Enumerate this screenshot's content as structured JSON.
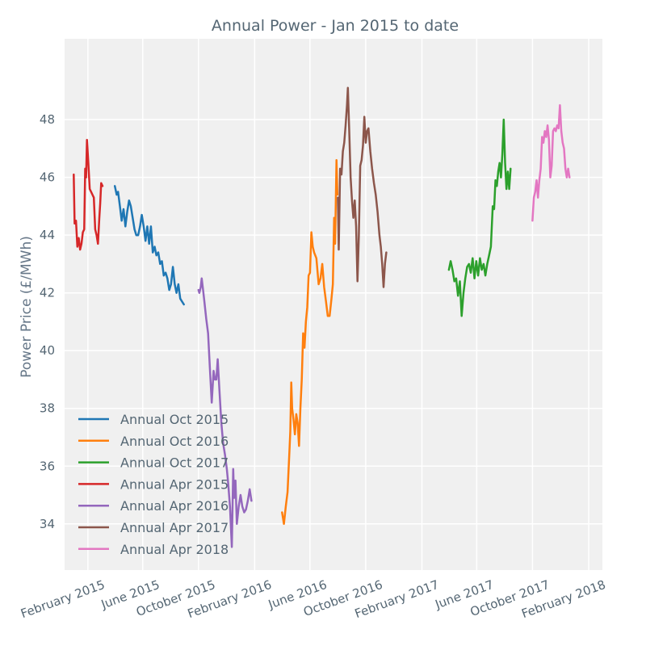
{
  "chart_data": {
    "type": "line",
    "title": "Annual Power - Jan 2015 to date",
    "xlabel": "",
    "ylabel": "Power Price (£/MWh)",
    "ylim": [
      32.4,
      50.8
    ],
    "xlim": [
      "2014-12-12",
      "2018-03-03"
    ],
    "y_ticks": [
      34,
      36,
      38,
      40,
      42,
      44,
      46,
      48
    ],
    "x_ticks": [
      {
        "date": "2015-02-01",
        "label": "February 2015"
      },
      {
        "date": "2015-06-01",
        "label": "June 2015"
      },
      {
        "date": "2015-10-01",
        "label": "October 2015"
      },
      {
        "date": "2016-02-01",
        "label": "February 2016"
      },
      {
        "date": "2016-06-01",
        "label": "June 2016"
      },
      {
        "date": "2016-10-01",
        "label": "October 2016"
      },
      {
        "date": "2017-02-01",
        "label": "February 2017"
      },
      {
        "date": "2017-06-01",
        "label": "June 2017"
      },
      {
        "date": "2017-10-01",
        "label": "October 2017"
      },
      {
        "date": "2018-02-01",
        "label": "February 2018"
      }
    ],
    "grid": true,
    "legend_position": "bottom-left",
    "series": [
      {
        "name": "Annual Oct 2015",
        "color": "#1f77b4",
        "points": [
          [
            "2015-04-01",
            45.7
          ],
          [
            "2015-04-05",
            45.4
          ],
          [
            "2015-04-08",
            45.5
          ],
          [
            "2015-04-12",
            45.0
          ],
          [
            "2015-04-16",
            44.5
          ],
          [
            "2015-04-20",
            44.9
          ],
          [
            "2015-04-24",
            44.3
          ],
          [
            "2015-04-28",
            44.8
          ],
          [
            "2015-05-02",
            45.2
          ],
          [
            "2015-05-06",
            45.0
          ],
          [
            "2015-05-10",
            44.6
          ],
          [
            "2015-05-14",
            44.2
          ],
          [
            "2015-05-18",
            44.0
          ],
          [
            "2015-05-22",
            44.0
          ],
          [
            "2015-05-26",
            44.3
          ],
          [
            "2015-05-30",
            44.7
          ],
          [
            "2015-06-03",
            44.3
          ],
          [
            "2015-06-07",
            43.8
          ],
          [
            "2015-06-11",
            44.3
          ],
          [
            "2015-06-15",
            43.7
          ],
          [
            "2015-06-19",
            44.3
          ],
          [
            "2015-06-23",
            43.4
          ],
          [
            "2015-06-27",
            43.6
          ],
          [
            "2015-07-01",
            43.3
          ],
          [
            "2015-07-05",
            43.4
          ],
          [
            "2015-07-09",
            43.0
          ],
          [
            "2015-07-13",
            43.1
          ],
          [
            "2015-07-17",
            42.6
          ],
          [
            "2015-07-21",
            42.7
          ],
          [
            "2015-07-25",
            42.5
          ],
          [
            "2015-07-29",
            42.1
          ],
          [
            "2015-08-02",
            42.3
          ],
          [
            "2015-08-06",
            42.9
          ],
          [
            "2015-08-10",
            42.3
          ],
          [
            "2015-08-14",
            42.0
          ],
          [
            "2015-08-18",
            42.3
          ],
          [
            "2015-08-22",
            41.8
          ],
          [
            "2015-08-26",
            41.7
          ],
          [
            "2015-08-30",
            41.6
          ]
        ]
      },
      {
        "name": "Annual Oct 2016",
        "color": "#ff7f0e",
        "points": [
          [
            "2016-04-01",
            34.4
          ],
          [
            "2016-04-05",
            34.0
          ],
          [
            "2016-04-09",
            34.6
          ],
          [
            "2016-04-13",
            35.1
          ],
          [
            "2016-04-17",
            36.5
          ],
          [
            "2016-04-19",
            37.2
          ],
          [
            "2016-04-21",
            38.9
          ],
          [
            "2016-04-23",
            38.0
          ],
          [
            "2016-04-26",
            37.6
          ],
          [
            "2016-04-29",
            37.1
          ],
          [
            "2016-05-02",
            37.8
          ],
          [
            "2016-05-05",
            37.5
          ],
          [
            "2016-05-08",
            36.7
          ],
          [
            "2016-05-11",
            38.0
          ],
          [
            "2016-05-14",
            39.0
          ],
          [
            "2016-05-17",
            40.6
          ],
          [
            "2016-05-20",
            40.1
          ],
          [
            "2016-05-23",
            41.0
          ],
          [
            "2016-05-26",
            41.5
          ],
          [
            "2016-05-29",
            42.6
          ],
          [
            "2016-06-01",
            42.7
          ],
          [
            "2016-06-04",
            44.1
          ],
          [
            "2016-06-07",
            43.6
          ],
          [
            "2016-06-10",
            43.4
          ],
          [
            "2016-06-15",
            43.2
          ],
          [
            "2016-06-20",
            42.3
          ],
          [
            "2016-06-24",
            42.5
          ],
          [
            "2016-06-28",
            43.0
          ],
          [
            "2016-07-02",
            42.2
          ],
          [
            "2016-07-06",
            41.7
          ],
          [
            "2016-07-10",
            41.2
          ],
          [
            "2016-07-14",
            41.2
          ],
          [
            "2016-07-18",
            41.8
          ],
          [
            "2016-07-21",
            42.3
          ],
          [
            "2016-07-24",
            44.6
          ],
          [
            "2016-07-26",
            43.7
          ],
          [
            "2016-07-29",
            46.6
          ],
          [
            "2016-07-31",
            45.4
          ]
        ]
      },
      {
        "name": "Annual Oct 2017",
        "color": "#2ca02c",
        "points": [
          [
            "2017-04-01",
            42.8
          ],
          [
            "2017-04-05",
            43.1
          ],
          [
            "2017-04-09",
            42.8
          ],
          [
            "2017-04-13",
            42.4
          ],
          [
            "2017-04-17",
            42.5
          ],
          [
            "2017-04-21",
            41.9
          ],
          [
            "2017-04-25",
            42.4
          ],
          [
            "2017-04-29",
            41.2
          ],
          [
            "2017-05-03",
            42.0
          ],
          [
            "2017-05-07",
            42.5
          ],
          [
            "2017-05-11",
            42.9
          ],
          [
            "2017-05-15",
            43.0
          ],
          [
            "2017-05-19",
            42.7
          ],
          [
            "2017-05-23",
            43.2
          ],
          [
            "2017-05-27",
            42.5
          ],
          [
            "2017-05-31",
            43.1
          ],
          [
            "2017-06-04",
            42.6
          ],
          [
            "2017-06-08",
            43.2
          ],
          [
            "2017-06-12",
            42.8
          ],
          [
            "2017-06-16",
            43.0
          ],
          [
            "2017-06-20",
            42.6
          ],
          [
            "2017-06-24",
            43.0
          ],
          [
            "2017-06-28",
            43.3
          ],
          [
            "2017-07-02",
            43.6
          ],
          [
            "2017-07-06",
            45.0
          ],
          [
            "2017-07-09",
            44.9
          ],
          [
            "2017-07-12",
            45.9
          ],
          [
            "2017-07-15",
            45.7
          ],
          [
            "2017-07-18",
            46.2
          ],
          [
            "2017-07-21",
            46.5
          ],
          [
            "2017-07-24",
            46.0
          ],
          [
            "2017-07-27",
            46.8
          ],
          [
            "2017-07-30",
            48.0
          ],
          [
            "2017-08-02",
            46.5
          ],
          [
            "2017-08-05",
            45.6
          ],
          [
            "2017-08-08",
            46.2
          ],
          [
            "2017-08-11",
            45.6
          ],
          [
            "2017-08-14",
            46.3
          ]
        ]
      },
      {
        "name": "Annual Apr 2015",
        "color": "#d62728",
        "points": [
          [
            "2015-01-01",
            46.1
          ],
          [
            "2015-01-03",
            44.4
          ],
          [
            "2015-01-06",
            44.5
          ],
          [
            "2015-01-09",
            43.6
          ],
          [
            "2015-01-12",
            43.9
          ],
          [
            "2015-01-15",
            43.5
          ],
          [
            "2015-01-18",
            43.7
          ],
          [
            "2015-01-21",
            44.1
          ],
          [
            "2015-01-24",
            44.2
          ],
          [
            "2015-01-26",
            46.3
          ],
          [
            "2015-01-28",
            46.0
          ],
          [
            "2015-01-30",
            47.3
          ],
          [
            "2015-02-02",
            46.5
          ],
          [
            "2015-02-05",
            45.6
          ],
          [
            "2015-02-08",
            45.5
          ],
          [
            "2015-02-11",
            45.4
          ],
          [
            "2015-02-14",
            45.3
          ],
          [
            "2015-02-17",
            44.2
          ],
          [
            "2015-02-20",
            44.0
          ],
          [
            "2015-02-23",
            43.7
          ],
          [
            "2015-02-26",
            44.6
          ],
          [
            "2015-02-28",
            45.1
          ],
          [
            "2015-03-02",
            45.8
          ],
          [
            "2015-03-05",
            45.7
          ]
        ]
      },
      {
        "name": "Annual Apr 2016",
        "color": "#9467bd",
        "points": [
          [
            "2015-10-01",
            42.1
          ],
          [
            "2015-10-03",
            42.0
          ],
          [
            "2015-10-06",
            42.2
          ],
          [
            "2015-10-08",
            42.5
          ],
          [
            "2015-10-11",
            42.1
          ],
          [
            "2015-10-14",
            41.7
          ],
          [
            "2015-10-18",
            41.1
          ],
          [
            "2015-10-22",
            40.6
          ],
          [
            "2015-10-26",
            39.4
          ],
          [
            "2015-10-30",
            38.2
          ],
          [
            "2015-11-03",
            39.3
          ],
          [
            "2015-11-06",
            39.0
          ],
          [
            "2015-11-09",
            39.0
          ],
          [
            "2015-11-12",
            39.7
          ],
          [
            "2015-11-16",
            38.6
          ],
          [
            "2015-11-20",
            37.5
          ],
          [
            "2015-11-24",
            36.8
          ],
          [
            "2015-11-28",
            36.4
          ],
          [
            "2015-12-02",
            35.9
          ],
          [
            "2015-12-05",
            35.4
          ],
          [
            "2015-12-09",
            34.6
          ],
          [
            "2015-12-13",
            33.2
          ],
          [
            "2015-12-16",
            35.9
          ],
          [
            "2015-12-18",
            34.9
          ],
          [
            "2015-12-21",
            35.5
          ],
          [
            "2015-12-24",
            34.0
          ],
          [
            "2015-12-28",
            34.6
          ],
          [
            "2016-01-01",
            35.0
          ],
          [
            "2016-01-05",
            34.6
          ],
          [
            "2016-01-09",
            34.4
          ],
          [
            "2016-01-13",
            34.5
          ],
          [
            "2016-01-17",
            34.8
          ],
          [
            "2016-01-21",
            35.2
          ],
          [
            "2016-01-25",
            34.8
          ]
        ]
      },
      {
        "name": "Annual Apr 2017",
        "color": "#8c564b",
        "points": [
          [
            "2016-08-01",
            45.3
          ],
          [
            "2016-08-03",
            43.5
          ],
          [
            "2016-08-06",
            46.3
          ],
          [
            "2016-08-09",
            46.1
          ],
          [
            "2016-08-12",
            46.9
          ],
          [
            "2016-08-15",
            47.2
          ],
          [
            "2016-08-18",
            47.8
          ],
          [
            "2016-08-21",
            48.5
          ],
          [
            "2016-08-23",
            49.1
          ],
          [
            "2016-08-26",
            47.6
          ],
          [
            "2016-08-29",
            46.0
          ],
          [
            "2016-09-01",
            45.2
          ],
          [
            "2016-09-04",
            44.6
          ],
          [
            "2016-09-07",
            45.2
          ],
          [
            "2016-09-10",
            44.3
          ],
          [
            "2016-09-13",
            42.4
          ],
          [
            "2016-09-16",
            44.0
          ],
          [
            "2016-09-19",
            46.4
          ],
          [
            "2016-09-22",
            46.6
          ],
          [
            "2016-09-25",
            47.1
          ],
          [
            "2016-09-28",
            48.1
          ],
          [
            "2016-10-01",
            47.2
          ],
          [
            "2016-10-04",
            47.6
          ],
          [
            "2016-10-07",
            47.7
          ],
          [
            "2016-10-11",
            46.9
          ],
          [
            "2016-10-15",
            46.3
          ],
          [
            "2016-10-19",
            45.8
          ],
          [
            "2016-10-23",
            45.4
          ],
          [
            "2016-10-27",
            44.8
          ],
          [
            "2016-10-31",
            44.0
          ],
          [
            "2016-11-03",
            43.6
          ],
          [
            "2016-11-06",
            43.0
          ],
          [
            "2016-11-09",
            42.2
          ],
          [
            "2016-11-12",
            43.0
          ],
          [
            "2016-11-15",
            43.4
          ]
        ]
      },
      {
        "name": "Annual Apr 2018",
        "color": "#e377c2",
        "points": [
          [
            "2017-10-01",
            44.5
          ],
          [
            "2017-10-04",
            45.3
          ],
          [
            "2017-10-07",
            45.5
          ],
          [
            "2017-10-10",
            45.9
          ],
          [
            "2017-10-13",
            45.3
          ],
          [
            "2017-10-16",
            45.9
          ],
          [
            "2017-10-19",
            46.3
          ],
          [
            "2017-10-22",
            47.4
          ],
          [
            "2017-10-25",
            47.2
          ],
          [
            "2017-10-28",
            47.6
          ],
          [
            "2017-10-31",
            47.4
          ],
          [
            "2017-11-03",
            47.8
          ],
          [
            "2017-11-06",
            47.3
          ],
          [
            "2017-11-09",
            46.0
          ],
          [
            "2017-11-12",
            46.4
          ],
          [
            "2017-11-15",
            47.6
          ],
          [
            "2017-11-18",
            47.7
          ],
          [
            "2017-11-21",
            47.6
          ],
          [
            "2017-11-24",
            47.8
          ],
          [
            "2017-11-27",
            47.7
          ],
          [
            "2017-11-30",
            48.5
          ],
          [
            "2017-12-03",
            47.6
          ],
          [
            "2017-12-06",
            47.2
          ],
          [
            "2017-12-09",
            47.0
          ],
          [
            "2017-12-12",
            46.3
          ],
          [
            "2017-12-15",
            46.0
          ],
          [
            "2017-12-18",
            46.3
          ],
          [
            "2017-12-21",
            46.0
          ]
        ]
      }
    ]
  }
}
